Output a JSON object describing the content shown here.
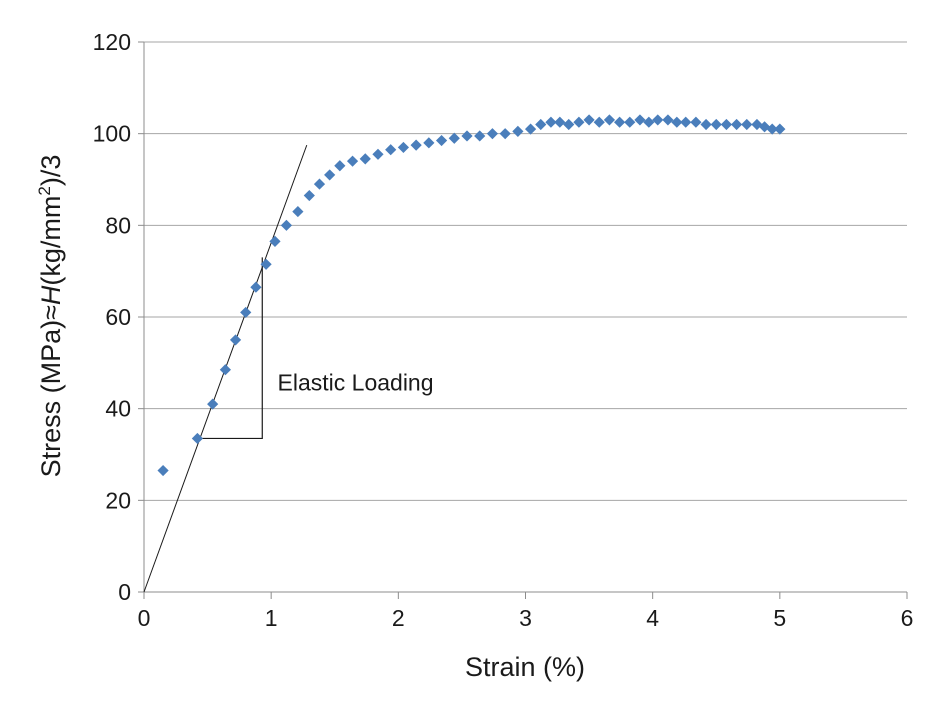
{
  "chart_data": {
    "type": "scatter",
    "xlabel": "Strain (%)",
    "ylabel_parts": [
      "Stress (MPa)≈",
      "H",
      "(kg/mm",
      "2",
      ")/3"
    ],
    "xlim": [
      0,
      6
    ],
    "ylim": [
      0,
      120
    ],
    "xticks": [
      0,
      1,
      2,
      3,
      4,
      5,
      6
    ],
    "yticks": [
      0,
      20,
      40,
      60,
      80,
      100,
      120
    ],
    "grid": "horizontal",
    "legend": "none",
    "marker": "diamond",
    "color": "#4a7ebb",
    "series": [
      {
        "x": [
          0.15,
          0.42,
          0.54,
          0.64,
          0.72,
          0.8,
          0.88,
          0.96,
          1.03,
          1.12,
          1.21,
          1.3,
          1.38,
          1.46,
          1.54,
          1.64,
          1.74,
          1.84,
          1.94,
          2.04,
          2.14,
          2.24,
          2.34,
          2.44,
          2.54,
          2.64,
          2.74,
          2.84,
          2.94,
          3.04,
          3.12,
          3.2,
          3.27,
          3.34,
          3.42,
          3.5,
          3.58,
          3.66,
          3.74,
          3.82,
          3.9,
          3.97,
          4.04,
          4.12,
          4.19,
          4.26,
          4.34,
          4.42,
          4.5,
          4.58,
          4.66,
          4.74,
          4.82,
          4.88,
          4.94,
          5.0
        ],
        "y": [
          26.5,
          33.5,
          41,
          48.5,
          55,
          61,
          66.5,
          71.5,
          76.5,
          80,
          83,
          86.5,
          89,
          91,
          93,
          94,
          94.5,
          95.5,
          96.5,
          97,
          97.5,
          98,
          98.5,
          99,
          99.5,
          99.5,
          100,
          100,
          100.5,
          101,
          102,
          102.5,
          102.5,
          102,
          102.5,
          103,
          102.5,
          103,
          102.5,
          102.5,
          103,
          102.5,
          103,
          103,
          102.5,
          102.5,
          102.5,
          102,
          102,
          102,
          102,
          102,
          102,
          101.5,
          101,
          101
        ]
      }
    ],
    "fit_line": {
      "x": [
        0,
        1.28
      ],
      "y": [
        0,
        97.5
      ]
    },
    "slope_triangle": {
      "x": [
        0.44,
        0.93
      ],
      "y": [
        33.5,
        73
      ]
    },
    "annotations": [
      {
        "text": "Elastic Loading",
        "x": 1.05,
        "y": 44
      }
    ]
  }
}
